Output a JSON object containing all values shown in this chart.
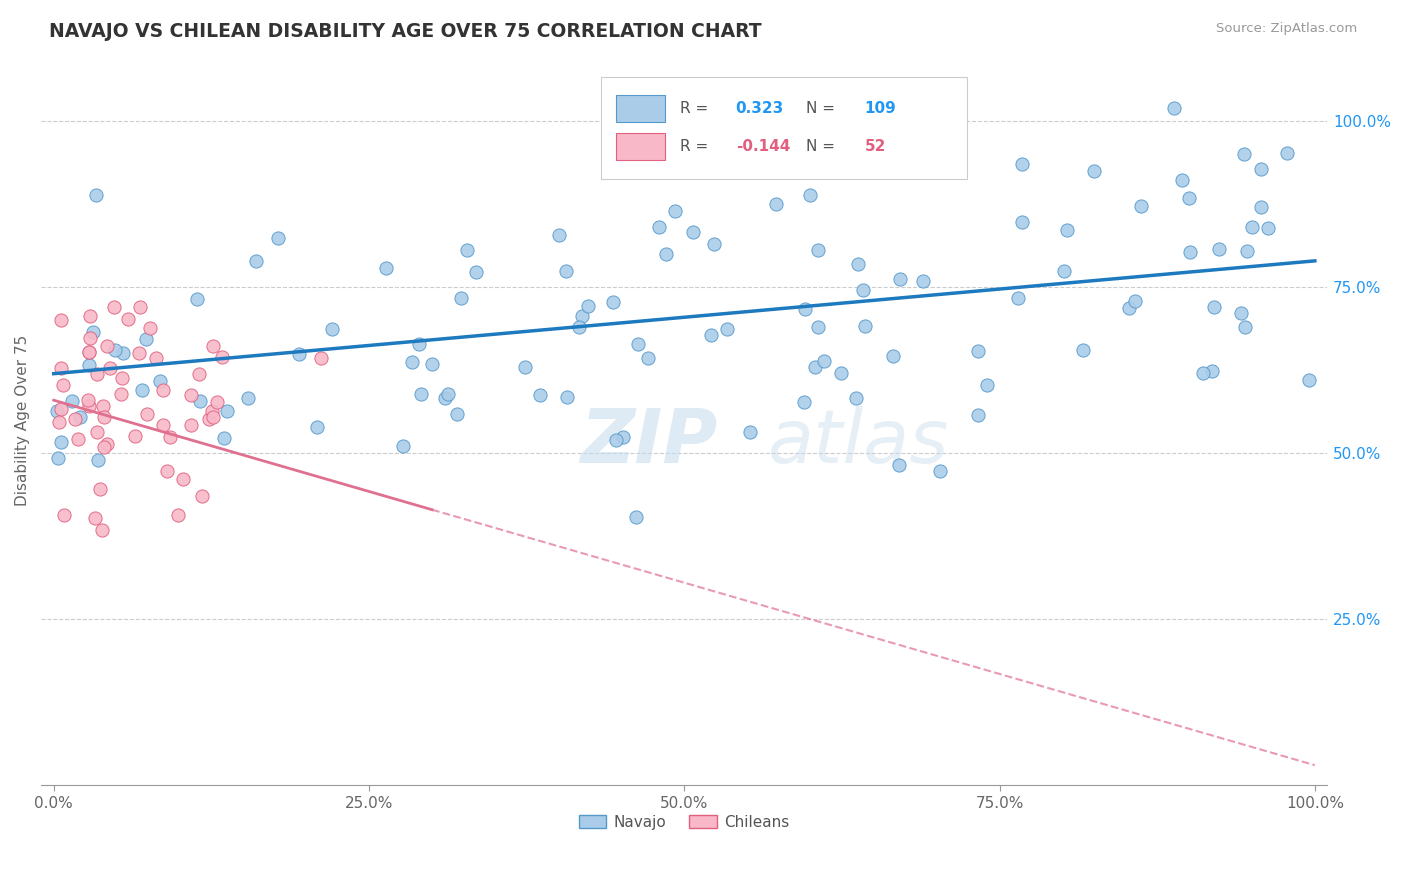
{
  "title": "NAVAJO VS CHILEAN DISABILITY AGE OVER 75 CORRELATION CHART",
  "source": "Source: ZipAtlas.com",
  "ylabel": "Disability Age Over 75",
  "navajo_R": "0.323",
  "navajo_N": "109",
  "chilean_R": "-0.144",
  "chilean_N": "52",
  "navajo_color": "#aacce8",
  "navajo_edge_color": "#5599cc",
  "chilean_color": "#f8b8c8",
  "chilean_edge_color": "#e06080",
  "navajo_line_color": "#1e7abf",
  "chilean_line_color": "#e07090",
  "right_axis_color": "#2196F3",
  "watermark_color": "#d8e8f5",
  "navajo_seed": 12,
  "chilean_seed": 7
}
